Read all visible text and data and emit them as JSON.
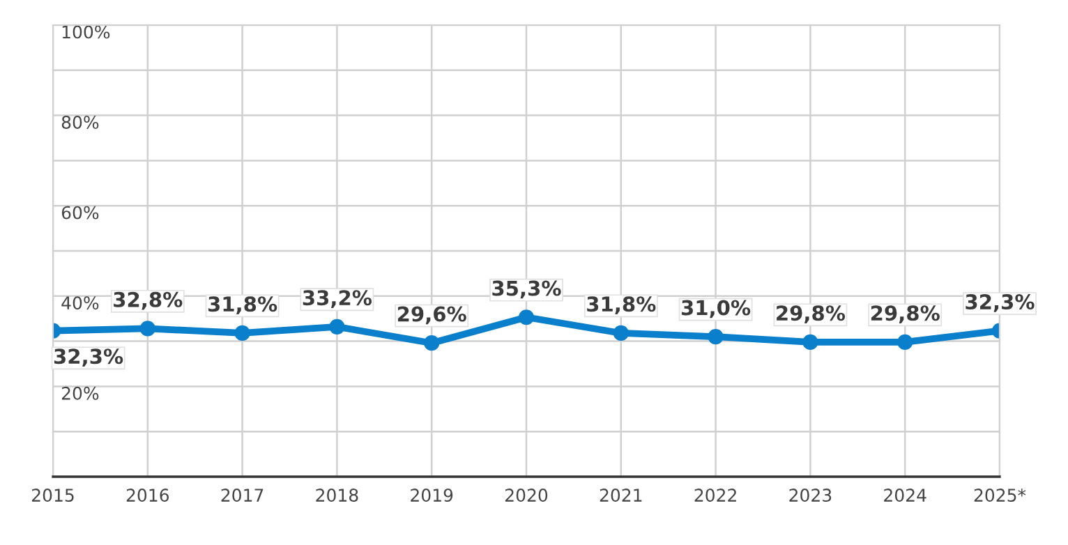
{
  "chart_data": {
    "type": "line",
    "categories": [
      "2015",
      "2016",
      "2017",
      "2018",
      "2019",
      "2020",
      "2021",
      "2022",
      "2023",
      "2024",
      "2025*"
    ],
    "series": [
      {
        "color": "#0a7fcc",
        "values": [
          32.3,
          32.8,
          31.8,
          33.2,
          29.6,
          35.3,
          31.8,
          31.0,
          29.8,
          29.8,
          32.3
        ],
        "value_labels": [
          "32,3%",
          "32,8%",
          "31,8%",
          "33,2%",
          "29,6%",
          "35,3%",
          "31,8%",
          "31,0%",
          "29,8%",
          "29,8%",
          "32,3%"
        ]
      }
    ],
    "ylim": [
      0,
      100
    ],
    "yticks": [
      {
        "value": 0,
        "label": null
      },
      {
        "value": 10,
        "label": null
      },
      {
        "value": 20,
        "label": "20%"
      },
      {
        "value": 30,
        "label": null
      },
      {
        "value": 40,
        "label": "40%"
      },
      {
        "value": 50,
        "label": null
      },
      {
        "value": 60,
        "label": "60%"
      },
      {
        "value": 70,
        "label": null
      },
      {
        "value": 80,
        "label": "80%"
      },
      {
        "value": 90,
        "label": null
      },
      {
        "value": 100,
        "label": "100%"
      }
    ],
    "grid": true,
    "marker": "circle",
    "line_style": "solid"
  }
}
